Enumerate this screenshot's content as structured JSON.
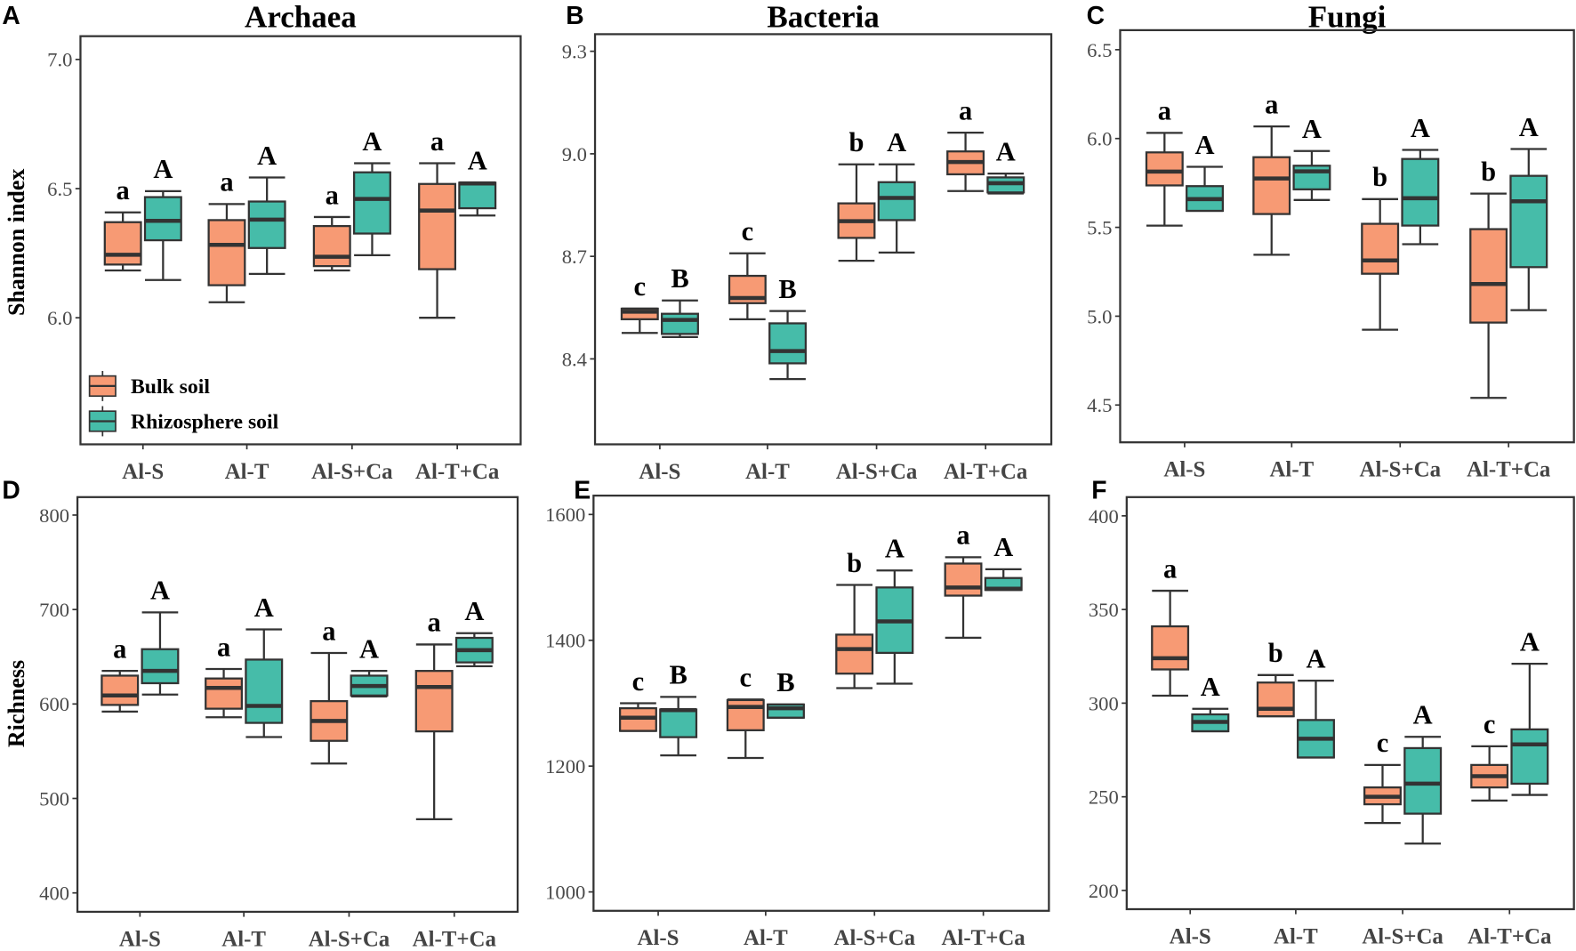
{
  "chart_data": [
    {
      "type": "box",
      "panel": "A",
      "title": "Archaea",
      "ylabel": "Shannon index",
      "xlabel": "",
      "ylim": [
        5.51,
        7.09
      ],
      "yticks": [
        {
          "v": 6.0,
          "label": "6.0"
        },
        {
          "v": 6.5,
          "label": "6.5"
        },
        {
          "v": 7.0,
          "label": "7.0"
        }
      ],
      "categories": [
        "Al-S",
        "Al-T",
        "Al-S+Ca",
        "Al-T+Ca"
      ],
      "legend": {
        "placement": "bottom-left",
        "entries": [
          "Bulk soil",
          "Rhizosphere soil"
        ]
      },
      "series": [
        {
          "name": "Bulk soil",
          "boxes": [
            [
              6.183,
              6.206,
              6.244,
              6.37,
              6.408
            ],
            [
              6.06,
              6.126,
              6.282,
              6.378,
              6.44
            ],
            [
              6.183,
              6.2,
              6.236,
              6.355,
              6.39
            ],
            [
              6.0,
              6.188,
              6.415,
              6.518,
              6.598
            ]
          ],
          "letters": [
            "a",
            "a",
            "a",
            "a"
          ]
        },
        {
          "name": "Rhizosphere soil",
          "boxes": [
            [
              6.146,
              6.3,
              6.375,
              6.467,
              6.49
            ],
            [
              6.17,
              6.27,
              6.38,
              6.45,
              6.543
            ],
            [
              6.242,
              6.326,
              6.46,
              6.563,
              6.598
            ],
            [
              6.396,
              6.424,
              6.52,
              6.523,
              6.523
            ]
          ],
          "letters": [
            "A",
            "A",
            "A",
            "A"
          ]
        }
      ]
    },
    {
      "type": "box",
      "panel": "B",
      "title": "Bacteria",
      "ylabel": "",
      "xlabel": "",
      "ylim": [
        8.15,
        9.35
      ],
      "yticks": [
        {
          "v": 8.4,
          "label": "8.4"
        },
        {
          "v": 8.7,
          "label": "8.7"
        },
        {
          "v": 9.0,
          "label": "9.0"
        },
        {
          "v": 9.3,
          "label": "9.3"
        }
      ],
      "categories": [
        "Al-S",
        "Al-T",
        "Al-S+Ca",
        "Al-T+Ca"
      ],
      "series": [
        {
          "name": "Bulk soil",
          "boxes": [
            [
              8.476,
              8.516,
              8.538,
              8.547,
              8.547
            ],
            [
              8.516,
              8.563,
              8.578,
              8.643,
              8.709
            ],
            [
              8.687,
              8.754,
              8.803,
              8.855,
              8.969
            ],
            [
              8.891,
              8.94,
              8.976,
              9.007,
              9.062
            ]
          ],
          "letters": [
            "c",
            "c",
            "b",
            "a"
          ]
        },
        {
          "name": "Rhizosphere soil",
          "boxes": [
            [
              8.464,
              8.473,
              8.514,
              8.532,
              8.571
            ],
            [
              8.341,
              8.387,
              8.423,
              8.504,
              8.54
            ],
            [
              8.711,
              8.806,
              8.871,
              8.917,
              8.969
            ],
            [
              8.884,
              8.887,
              8.914,
              8.931,
              8.942
            ]
          ],
          "letters": [
            "B",
            "B",
            "A",
            "A"
          ]
        }
      ]
    },
    {
      "type": "box",
      "panel": "C",
      "title": "Fungi",
      "ylabel": "",
      "xlabel": "",
      "ylim": [
        4.29,
        6.61
      ],
      "yticks": [
        {
          "v": 4.5,
          "label": "4.5"
        },
        {
          "v": 5.0,
          "label": "5.0"
        },
        {
          "v": 5.5,
          "label": "5.5"
        },
        {
          "v": 6.0,
          "label": "6.0"
        },
        {
          "v": 6.5,
          "label": "6.5"
        }
      ],
      "categories": [
        "Al-S",
        "Al-T",
        "Al-S+Ca",
        "Al-T+Ca"
      ],
      "series": [
        {
          "name": "Bulk soil",
          "boxes": [
            [
              5.51,
              5.736,
              5.814,
              5.922,
              6.032
            ],
            [
              5.346,
              5.575,
              5.775,
              5.895,
              6.068
            ],
            [
              4.924,
              5.239,
              5.314,
              5.52,
              5.659
            ],
            [
              4.54,
              4.964,
              5.181,
              5.49,
              5.69
            ]
          ],
          "letters": [
            "a",
            "a",
            "b",
            "b"
          ]
        },
        {
          "name": "Rhizosphere soil",
          "boxes": [
            [
              5.593,
              5.593,
              5.659,
              5.732,
              5.841
            ],
            [
              5.654,
              5.714,
              5.815,
              5.847,
              5.93
            ],
            [
              5.405,
              5.51,
              5.664,
              5.885,
              5.936
            ],
            [
              5.034,
              5.276,
              5.647,
              5.79,
              5.941
            ]
          ],
          "letters": [
            "A",
            "A",
            "A",
            "A"
          ]
        }
      ]
    },
    {
      "type": "box",
      "panel": "D",
      "title": "",
      "ylabel": "Richness",
      "xlabel": "",
      "ylim": [
        380,
        819
      ],
      "yticks": [
        {
          "v": 400,
          "label": "400"
        },
        {
          "v": 500,
          "label": "500"
        },
        {
          "v": 600,
          "label": "600"
        },
        {
          "v": 700,
          "label": "700"
        },
        {
          "v": 800,
          "label": "800"
        }
      ],
      "categories": [
        "Al-S",
        "Al-T",
        "Al-S+Ca",
        "Al-T+Ca"
      ],
      "series": [
        {
          "name": "Bulk soil",
          "boxes": [
            [
              592,
              599,
              609,
              630,
              635
            ],
            [
              586,
              595,
              617,
              627,
              637
            ],
            [
              537,
              561,
              582,
              603,
              654
            ],
            [
              478,
              571,
              618,
              635,
              663
            ]
          ],
          "letters": [
            "a",
            "a",
            "a",
            "a"
          ]
        },
        {
          "name": "Rhizosphere soil",
          "boxes": [
            [
              610,
              622,
              635,
              658,
              697
            ],
            [
              565,
              580,
              598,
              647,
              679
            ],
            [
              608,
              609,
              619,
              630,
              635
            ],
            [
              640,
              644,
              657,
              670,
              675
            ]
          ],
          "letters": [
            "A",
            "A",
            "A",
            "A"
          ]
        }
      ]
    },
    {
      "type": "box",
      "panel": "E",
      "title": "",
      "ylabel": "",
      "xlabel": "",
      "ylim": [
        970,
        1630
      ],
      "yticks": [
        {
          "v": 1000,
          "label": "1000"
        },
        {
          "v": 1200,
          "label": "1200"
        },
        {
          "v": 1400,
          "label": "1400"
        },
        {
          "v": 1600,
          "label": "1600"
        }
      ],
      "categories": [
        "Al-S",
        "Al-T",
        "Al-S+Ca",
        "Al-T+Ca"
      ],
      "series": [
        {
          "name": "Bulk soil",
          "boxes": [
            [
              1256,
              1256,
              1277,
              1292,
              1300
            ],
            [
              1213,
              1257,
              1294,
              1305,
              1306
            ],
            [
              1324,
              1347,
              1386,
              1409,
              1488
            ],
            [
              1404,
              1471,
              1484,
              1522,
              1532
            ]
          ],
          "letters": [
            "c",
            "c",
            "b",
            "a"
          ]
        },
        {
          "name": "Rhizosphere soil",
          "boxes": [
            [
              1217,
              1246,
              1289,
              1290,
              1310
            ],
            [
              1277,
              1277,
              1292,
              1298,
              1298
            ],
            [
              1331,
              1380,
              1430,
              1484,
              1511
            ],
            [
              1480,
              1480,
              1482,
              1499,
              1513
            ]
          ],
          "letters": [
            "B",
            "B",
            "A",
            "A"
          ]
        }
      ]
    },
    {
      "type": "box",
      "panel": "F",
      "title": "",
      "ylabel": "",
      "xlabel": "",
      "ylim": [
        190,
        410
      ],
      "yticks": [
        {
          "v": 200,
          "label": "200"
        },
        {
          "v": 250,
          "label": "250"
        },
        {
          "v": 300,
          "label": "300"
        },
        {
          "v": 350,
          "label": "350"
        },
        {
          "v": 400,
          "label": "400"
        }
      ],
      "categories": [
        "Al-S",
        "Al-T",
        "Al-S+Ca",
        "Al-T+Ca"
      ],
      "series": [
        {
          "name": "Bulk soil",
          "boxes": [
            [
              304,
              318,
              324,
              341,
              360
            ],
            [
              293,
              293,
              297,
              311,
              315
            ],
            [
              236,
              246,
              250,
              255,
              267
            ],
            [
              248,
              255,
              261,
              267,
              277
            ]
          ],
          "letters": [
            "a",
            "b",
            "c",
            "c"
          ]
        },
        {
          "name": "Rhizosphere soil",
          "boxes": [
            [
              285,
              285,
              290,
              294,
              297
            ],
            [
              271,
              271,
              281,
              291,
              312
            ],
            [
              225,
              241,
              257,
              276,
              282
            ],
            [
              251,
              257,
              278,
              286,
              321
            ]
          ],
          "letters": [
            "A",
            "A",
            "A",
            "A"
          ]
        }
      ]
    }
  ],
  "colors": {
    "bulk": "#F79A74",
    "rhizo": "#46BCA9",
    "stroke": "#333333"
  }
}
